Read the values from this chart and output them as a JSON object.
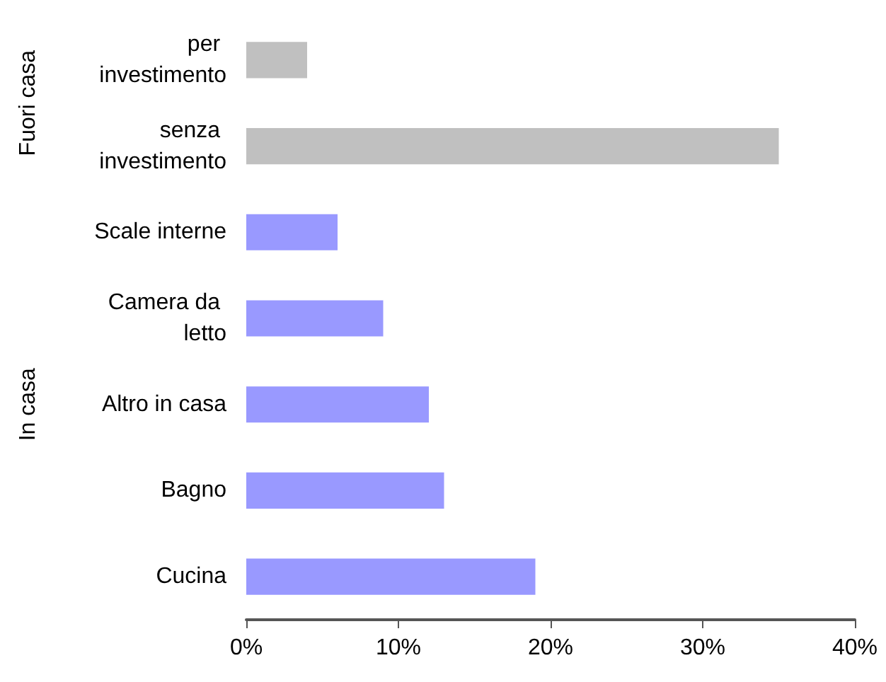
{
  "chart_data": {
    "type": "bar",
    "orientation": "horizontal",
    "categories": [
      "per investimento",
      "senza investimento",
      "Scale interne",
      "Camera da letto",
      "Altro in casa",
      "Bagno",
      "Cucina"
    ],
    "values": [
      4,
      35,
      6,
      9,
      12,
      13,
      19
    ],
    "colors": [
      "#c0c0c0",
      "#c0c0c0",
      "#9999ff",
      "#9999ff",
      "#9999ff",
      "#9999ff",
      "#9999ff"
    ],
    "xlim": [
      0,
      40
    ],
    "xticks": [
      {
        "value": 0,
        "label": "0%"
      },
      {
        "value": 10,
        "label": "10%"
      },
      {
        "value": 20,
        "label": "20%"
      },
      {
        "value": 30,
        "label": "30%"
      },
      {
        "value": 40,
        "label": "40%"
      }
    ],
    "annotations": [
      "Fuori casa",
      "In casa"
    ],
    "grid": false
  }
}
